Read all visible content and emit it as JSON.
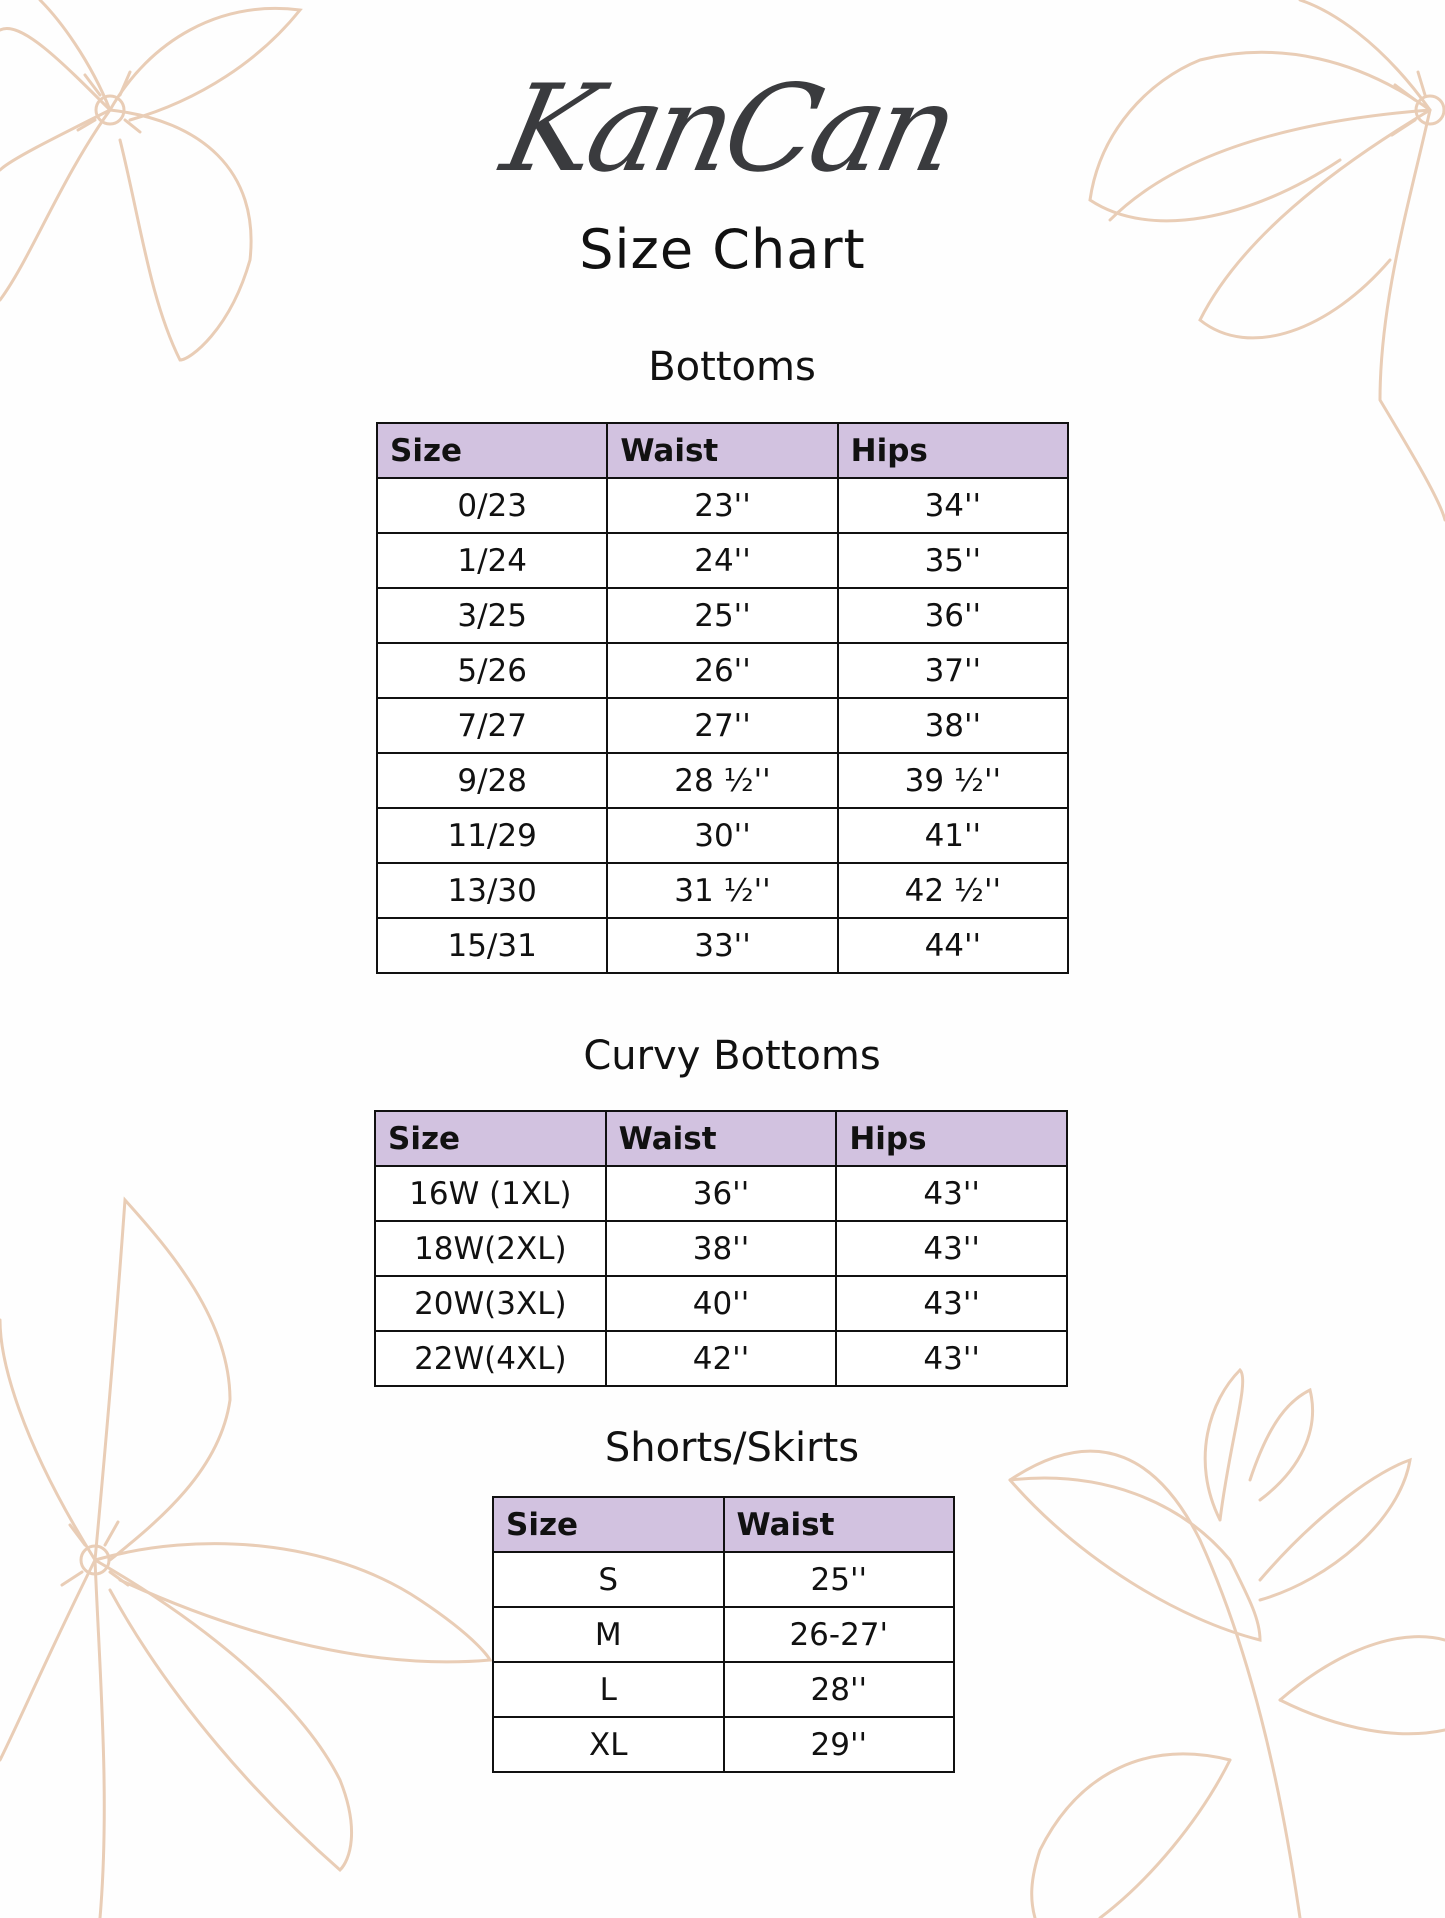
{
  "brand": {
    "logo_text": "KanCan"
  },
  "title": "Size Chart",
  "colors": {
    "header_bg": "#d2c2e0",
    "floral_line": "#e9cdb6",
    "logo": "#3a3b3e"
  },
  "sections": [
    {
      "title": "Bottoms",
      "columns": [
        "Size",
        "Waist",
        "Hips"
      ],
      "rows": [
        [
          "0/23",
          "23''",
          "34''"
        ],
        [
          "1/24",
          "24''",
          "35''"
        ],
        [
          "3/25",
          "25''",
          "36''"
        ],
        [
          "5/26",
          "26''",
          "37''"
        ],
        [
          "7/27",
          "27''",
          "38''"
        ],
        [
          "9/28",
          "28 ½''",
          "39 ½''"
        ],
        [
          "11/29",
          "30''",
          "41''"
        ],
        [
          "13/30",
          "31 ½''",
          "42 ½''"
        ],
        [
          "15/31",
          "33''",
          "44''"
        ]
      ]
    },
    {
      "title": "Curvy Bottoms",
      "columns": [
        "Size",
        "Waist",
        "Hips"
      ],
      "rows": [
        [
          "16W (1XL)",
          "36''",
          "43''"
        ],
        [
          "18W(2XL)",
          "38''",
          "43''"
        ],
        [
          "20W(3XL)",
          "40''",
          "43''"
        ],
        [
          "22W(4XL)",
          "42''",
          "43''"
        ]
      ]
    },
    {
      "title": "Shorts/Skirts",
      "columns": [
        "Size",
        "Waist"
      ],
      "rows": [
        [
          "S",
          "25''"
        ],
        [
          "M",
          "26-27'"
        ],
        [
          "L",
          "28''"
        ],
        [
          "XL",
          "29''"
        ]
      ]
    }
  ]
}
